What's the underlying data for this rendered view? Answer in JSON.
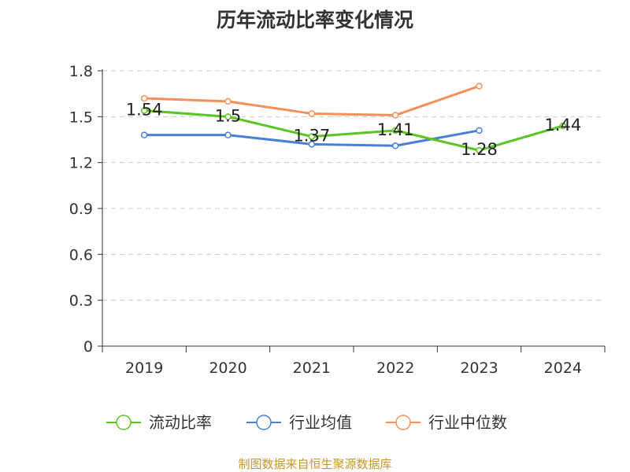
{
  "chart_data": {
    "type": "line",
    "title": "历年流动比率变化情况",
    "categories": [
      "2019",
      "2020",
      "2021",
      "2022",
      "2023",
      "2024"
    ],
    "ylim": [
      0,
      1.8
    ],
    "yticks": [
      "0",
      "0.3",
      "0.6",
      "0.9",
      "1.2",
      "1.5",
      "1.8"
    ],
    "grid": "horizontal dashed",
    "legend_position": "bottom",
    "series": [
      {
        "name": "流动比率",
        "color": "#5cc424",
        "values": [
          1.54,
          1.5,
          1.37,
          1.41,
          1.28,
          1.44
        ],
        "labels": [
          "1.54",
          "1.5",
          "1.37",
          "1.41",
          "1.28",
          "1.44"
        ]
      },
      {
        "name": "行业均值",
        "color": "#4a7fd8",
        "values": [
          1.38,
          1.38,
          1.32,
          1.31,
          1.41,
          null
        ]
      },
      {
        "name": "行业中位数",
        "color": "#f4915a",
        "values": [
          1.62,
          1.6,
          1.52,
          1.51,
          1.7,
          null
        ]
      }
    ]
  },
  "footer": "制图数据来自恒生聚源数据库"
}
